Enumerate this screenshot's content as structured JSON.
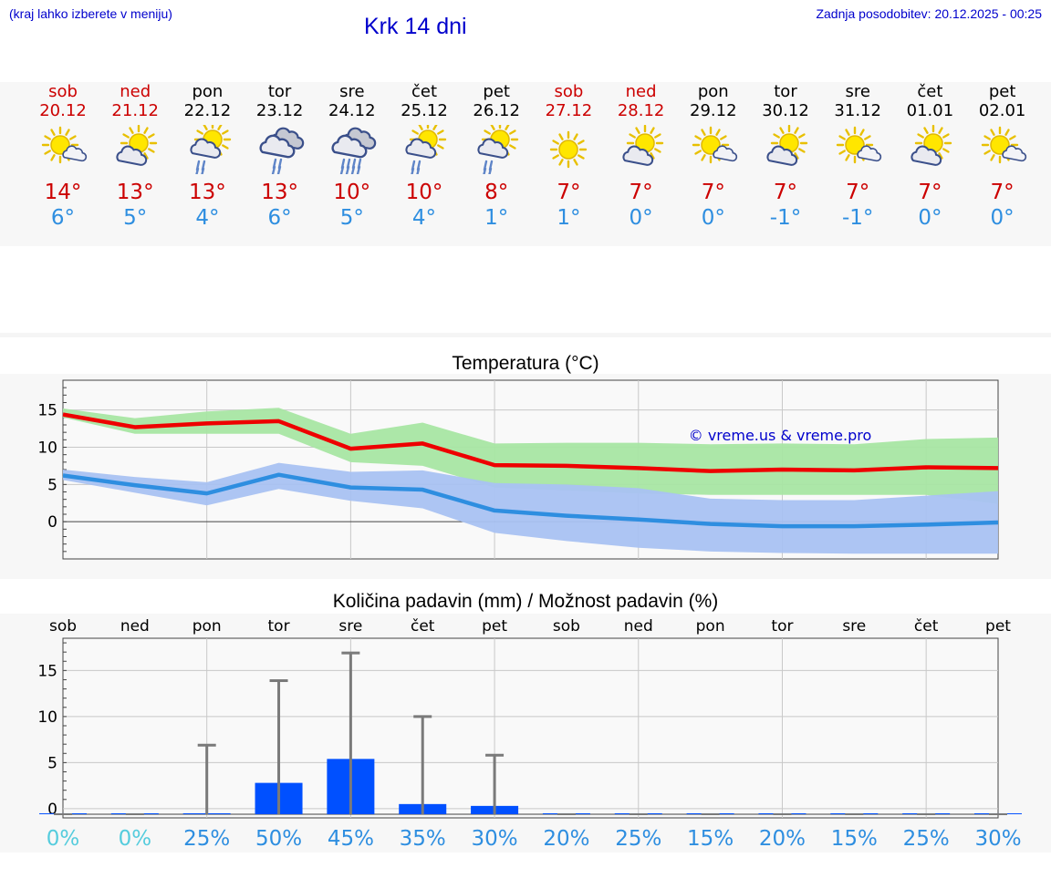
{
  "header": {
    "menu_hint": "(kraj lahko izberete v meniju)",
    "title": "Krk 14 dni",
    "updated": "Zadnja posodobitev: 20.12.2025 - 00:25"
  },
  "colors": {
    "title_blue": "#0000cc",
    "max_red": "#cc0000",
    "min_blue": "#2e8ee0",
    "precip_bar": "#0050ff",
    "pct_cyan": "#55ccdd",
    "pct_blue": "#2e8ee0"
  },
  "days": [
    {
      "name": "sob",
      "date": "20.12",
      "weekend": true,
      "icon": "sun-cloud-icon",
      "max": "14°",
      "min": "6°"
    },
    {
      "name": "ned",
      "date": "21.12",
      "weekend": true,
      "icon": "cloud-sun-icon",
      "max": "13°",
      "min": "5°"
    },
    {
      "name": "pon",
      "date": "22.12",
      "weekend": false,
      "icon": "cloud-sun-rain-icon",
      "max": "13°",
      "min": "4°"
    },
    {
      "name": "tor",
      "date": "23.12",
      "weekend": false,
      "icon": "cloudy-rain-icon",
      "max": "13°",
      "min": "6°"
    },
    {
      "name": "sre",
      "date": "24.12",
      "weekend": false,
      "icon": "cloudy-heavy-rain-icon",
      "max": "10°",
      "min": "5°"
    },
    {
      "name": "čet",
      "date": "25.12",
      "weekend": false,
      "icon": "sun-cloud-rain-icon",
      "max": "10°",
      "min": "4°"
    },
    {
      "name": "pet",
      "date": "26.12",
      "weekend": false,
      "icon": "sun-cloud-rain-icon",
      "max": "8°",
      "min": "1°"
    },
    {
      "name": "sob",
      "date": "27.12",
      "weekend": true,
      "icon": "sun-icon",
      "max": "7°",
      "min": "1°"
    },
    {
      "name": "ned",
      "date": "28.12",
      "weekend": true,
      "icon": "cloud-sun-icon",
      "max": "7°",
      "min": "0°"
    },
    {
      "name": "pon",
      "date": "29.12",
      "weekend": false,
      "icon": "sun-cloud-icon",
      "max": "7°",
      "min": "0°"
    },
    {
      "name": "tor",
      "date": "30.12",
      "weekend": false,
      "icon": "cloud-sun-icon",
      "max": "7°",
      "min": "-1°"
    },
    {
      "name": "sre",
      "date": "31.12",
      "weekend": false,
      "icon": "sun-cloud-icon",
      "max": "7°",
      "min": "-1°"
    },
    {
      "name": "čet",
      "date": "01.01",
      "weekend": false,
      "icon": "cloud-sun-icon",
      "max": "7°",
      "min": "0°"
    },
    {
      "name": "pet",
      "date": "02.01",
      "weekend": false,
      "icon": "sun-cloud-icon",
      "max": "7°",
      "min": "0°"
    }
  ],
  "chart_data": [
    {
      "type": "line",
      "title": "Temperatura (°C)",
      "watermark": "© vreme.us & vreme.pro",
      "ylim": [
        -5,
        19
      ],
      "yticks": [
        "15",
        "10",
        "5",
        "0"
      ],
      "ytick_values": [
        15,
        10,
        5,
        0
      ],
      "grid": true,
      "series": [
        {
          "name": "max",
          "color": "#ee0000",
          "values": [
            14.4,
            12.7,
            13.2,
            13.5,
            9.8,
            10.5,
            7.6,
            7.5,
            7.2,
            6.8,
            7.0,
            6.9,
            7.3,
            7.2
          ],
          "band_low": [
            14.0,
            11.8,
            11.8,
            11.8,
            8.0,
            7.5,
            4.6,
            4.2,
            3.8,
            3.6,
            3.6,
            3.6,
            3.6,
            2.4
          ],
          "band_high": [
            15.2,
            13.9,
            14.8,
            15.3,
            11.8,
            13.3,
            10.5,
            10.6,
            10.6,
            10.4,
            10.5,
            10.4,
            11.1,
            11.3
          ]
        },
        {
          "name": "min",
          "color": "#2e8ee0",
          "values": [
            6.2,
            4.9,
            3.8,
            6.3,
            4.6,
            4.3,
            1.5,
            0.8,
            0.3,
            -0.3,
            -0.6,
            -0.6,
            -0.4,
            -0.1
          ],
          "band_low": [
            5.6,
            3.9,
            2.2,
            4.4,
            2.8,
            1.8,
            -1.5,
            -2.6,
            -3.5,
            -4.0,
            -4.2,
            -4.3,
            -4.3,
            -4.3
          ],
          "band_high": [
            7.0,
            6.0,
            5.3,
            7.9,
            6.7,
            6.9,
            5.2,
            5.0,
            4.5,
            3.1,
            2.9,
            2.9,
            3.5,
            4.1
          ]
        }
      ]
    },
    {
      "type": "bar",
      "title": "Količina padavin (mm) / Možnost padavin (%)",
      "categories": [
        "sob",
        "ned",
        "pon",
        "tor",
        "sre",
        "čet",
        "pet",
        "sob",
        "ned",
        "pon",
        "tor",
        "sre",
        "čet",
        "pet"
      ],
      "ylim": [
        -1,
        18.5
      ],
      "yticks": [
        "15",
        "10",
        "5",
        "0"
      ],
      "ytick_values": [
        15,
        10,
        5,
        0
      ],
      "values": [
        0,
        0,
        0.1,
        3.4,
        6.0,
        1.1,
        0.9,
        0,
        0,
        0,
        0,
        0,
        0,
        0
      ],
      "max_values": [
        0,
        0,
        6.9,
        13.9,
        16.9,
        10.0,
        5.8,
        0,
        0,
        0,
        0,
        0,
        0,
        0
      ],
      "probabilities": [
        "0%",
        "0%",
        "25%",
        "50%",
        "45%",
        "35%",
        "30%",
        "20%",
        "25%",
        "15%",
        "20%",
        "15%",
        "25%",
        "30%"
      ]
    }
  ]
}
